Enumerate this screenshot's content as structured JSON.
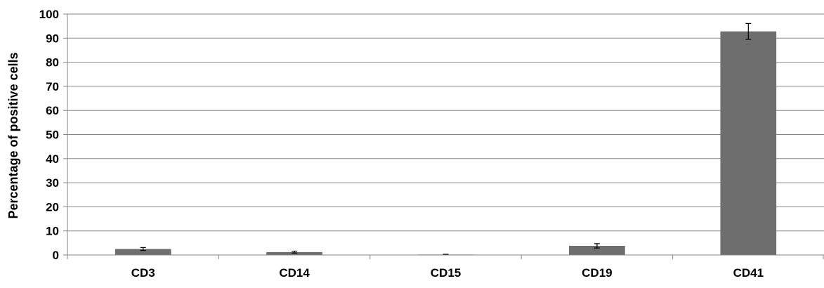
{
  "chart_data": {
    "type": "bar",
    "title": "",
    "xlabel": "",
    "ylabel": "Percentage of positive cells",
    "categories": [
      "CD3",
      "CD14",
      "CD15",
      "CD19",
      "CD41"
    ],
    "values": [
      2.5,
      1.2,
      0.2,
      3.8,
      92.8
    ],
    "error": [
      0.6,
      0.4,
      0.1,
      0.9,
      3.3
    ],
    "ylim": [
      0,
      100
    ],
    "yticks": [
      "0",
      "10",
      "20",
      "30",
      "40",
      "50",
      "60",
      "70",
      "80",
      "90",
      "100"
    ],
    "grid": true,
    "legend": "none",
    "bar_color": "#6e6e6e",
    "grid_color": "#868686"
  }
}
